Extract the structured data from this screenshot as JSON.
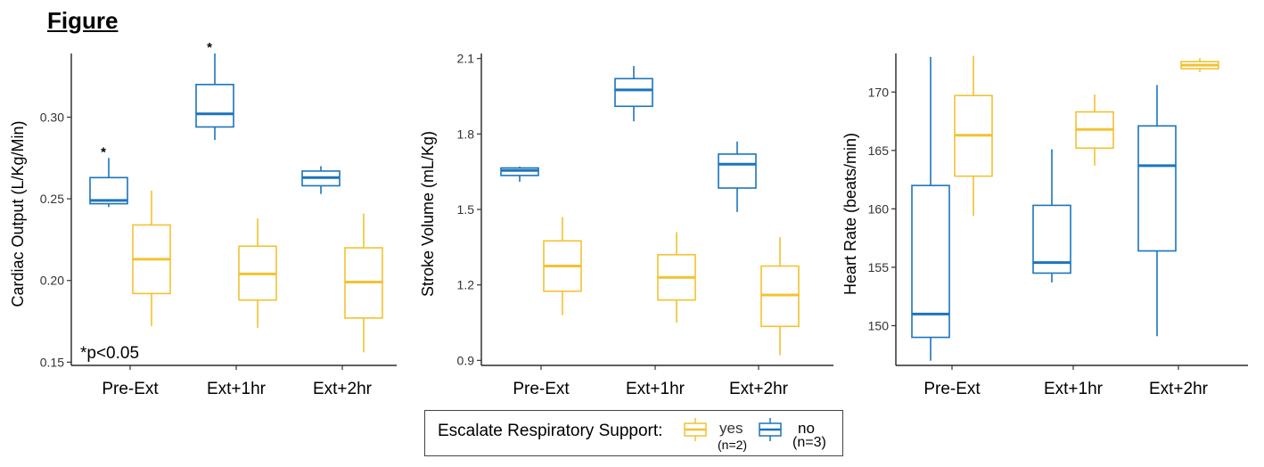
{
  "figure_title": "Figure",
  "colors": {
    "yes": "#F2C232",
    "no": "#1B75BC"
  },
  "legend": {
    "title": "Escalate Respiratory Support:",
    "yes_label": "yes",
    "yes_n": "(n=2)",
    "no_label": "no",
    "no_n": "(n=3)"
  },
  "chart_data": [
    {
      "type": "box",
      "ylabel": "Cardiac Output (L/Kg/Min)",
      "categories": [
        "Pre-Ext",
        "Ext+1hr",
        "Ext+2hr"
      ],
      "yticks": [
        0.15,
        0.2,
        0.25,
        0.3
      ],
      "ytick_labels": [
        "0.15",
        "0.20",
        "0.25",
        "0.30"
      ],
      "ylim": [
        0.148,
        0.339
      ],
      "grid": false,
      "annotation": "*p<0.05",
      "series": [
        {
          "name": "no",
          "color_key": "no",
          "boxes": [
            {
              "min": 0.245,
              "q1": 0.247,
              "median": 0.249,
              "q3": 0.263,
              "max": 0.275,
              "star": "*"
            },
            {
              "min": 0.286,
              "q1": 0.294,
              "median": 0.302,
              "q3": 0.32,
              "max": 0.339,
              "star": "*"
            },
            {
              "min": 0.253,
              "q1": 0.258,
              "median": 0.263,
              "q3": 0.267,
              "max": 0.27,
              "star": ""
            }
          ]
        },
        {
          "name": "yes",
          "color_key": "yes",
          "boxes": [
            {
              "min": 0.172,
              "q1": 0.192,
              "median": 0.213,
              "q3": 0.234,
              "max": 0.255
            },
            {
              "min": 0.171,
              "q1": 0.188,
              "median": 0.204,
              "q3": 0.221,
              "max": 0.238
            },
            {
              "min": 0.156,
              "q1": 0.177,
              "median": 0.199,
              "q3": 0.22,
              "max": 0.241
            }
          ]
        }
      ]
    },
    {
      "type": "box",
      "ylabel": "Stroke Volume (mL/Kg)",
      "categories": [
        "Pre-Ext",
        "Ext+1hr",
        "Ext+2hr"
      ],
      "yticks": [
        0.9,
        1.2,
        1.5,
        1.8,
        2.1
      ],
      "ytick_labels": [
        "0.9",
        "1.2",
        "1.5",
        "1.8",
        "2.1"
      ],
      "ylim": [
        0.88,
        2.12
      ],
      "grid": false,
      "series": [
        {
          "name": "no",
          "color_key": "no",
          "boxes": [
            {
              "min": 1.61,
              "q1": 1.635,
              "median": 1.655,
              "q3": 1.665,
              "max": 1.67
            },
            {
              "min": 1.85,
              "q1": 1.91,
              "median": 1.975,
              "q3": 2.02,
              "max": 2.07
            },
            {
              "min": 1.49,
              "q1": 1.585,
              "median": 1.68,
              "q3": 1.72,
              "max": 1.77
            }
          ]
        },
        {
          "name": "yes",
          "color_key": "yes",
          "boxes": [
            {
              "min": 1.08,
              "q1": 1.175,
              "median": 1.275,
              "q3": 1.375,
              "max": 1.47
            },
            {
              "min": 1.05,
              "q1": 1.14,
              "median": 1.23,
              "q3": 1.32,
              "max": 1.41
            },
            {
              "min": 0.92,
              "q1": 1.035,
              "median": 1.16,
              "q3": 1.275,
              "max": 1.39
            }
          ]
        }
      ]
    },
    {
      "type": "box",
      "ylabel": "Heart Rate (beats/min)",
      "categories": [
        "Pre-Ext",
        "Ext+1hr",
        "Ext+2hr"
      ],
      "yticks": [
        150,
        155,
        160,
        165,
        170
      ],
      "ytick_labels": [
        "150",
        "155",
        "160",
        "165",
        "170"
      ],
      "ylim": [
        146.6,
        173.3
      ],
      "grid": false,
      "series": [
        {
          "name": "no",
          "color_key": "no",
          "boxes": [
            {
              "min": 147.0,
              "q1": 149.0,
              "median": 151.0,
              "q3": 162.0,
              "max": 173.0
            },
            {
              "min": 153.7,
              "q1": 154.5,
              "median": 155.4,
              "q3": 160.3,
              "max": 165.1
            },
            {
              "min": 149.1,
              "q1": 156.4,
              "median": 163.7,
              "q3": 167.1,
              "max": 170.6
            }
          ]
        },
        {
          "name": "yes",
          "color_key": "yes",
          "boxes": [
            {
              "min": 159.4,
              "q1": 162.8,
              "median": 166.3,
              "q3": 169.7,
              "max": 173.1
            },
            {
              "min": 163.7,
              "q1": 165.2,
              "median": 166.8,
              "q3": 168.3,
              "max": 169.8
            },
            {
              "min": 171.7,
              "q1": 172.0,
              "median": 172.3,
              "q3": 172.6,
              "max": 172.9
            }
          ]
        }
      ]
    }
  ]
}
